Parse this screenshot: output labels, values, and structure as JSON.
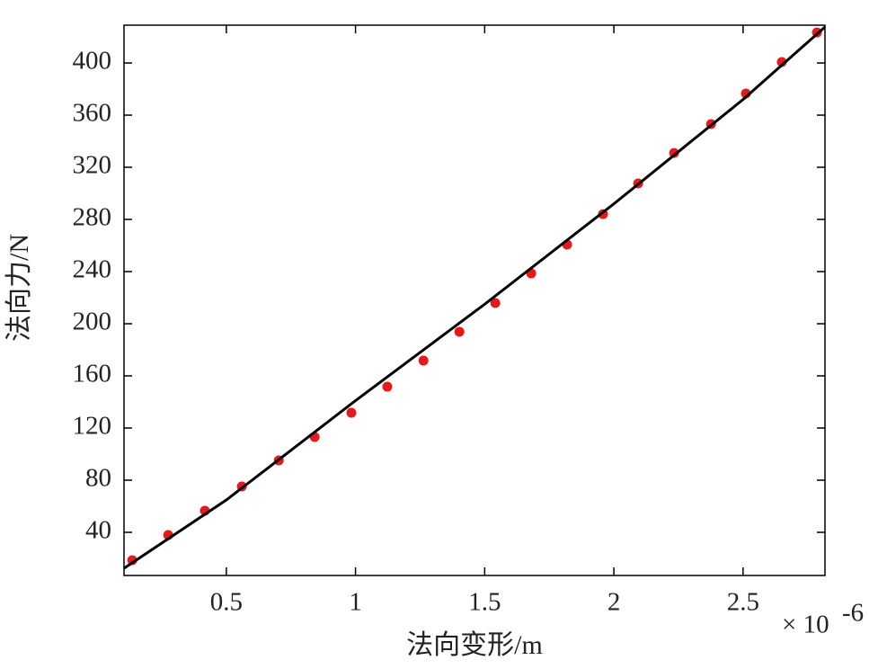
{
  "chart_data": {
    "type": "line",
    "x_label": "法向变形/m",
    "y_label": "法向力/N",
    "x_multiplier": "× 10",
    "x_multiplier_exp": "-6",
    "xlim": [
      0.104,
      2.817
    ],
    "ylim": [
      6.9,
      429
    ],
    "xticks": [
      0.5,
      1,
      1.5,
      2,
      2.5
    ],
    "yticks": [
      40,
      80,
      120,
      160,
      200,
      240,
      280,
      320,
      360,
      400
    ],
    "series": [
      {
        "style": "points",
        "color": "#e41a1c",
        "x": [
          0.136,
          0.275,
          0.417,
          0.56,
          0.703,
          0.842,
          0.984,
          1.123,
          1.263,
          1.402,
          1.541,
          1.68,
          1.819,
          1.958,
          2.094,
          2.233,
          2.376,
          2.511,
          2.65,
          2.786
        ],
        "values": [
          18.6,
          37.9,
          56.6,
          75.2,
          95.2,
          113.1,
          131.7,
          151.7,
          171.7,
          193.8,
          215.9,
          238.6,
          260.7,
          284.1,
          307.6,
          331.0,
          353.1,
          376.6,
          400.7,
          423.4
        ]
      },
      {
        "style": "line",
        "color": "#000000",
        "x": [
          0.104,
          0.5,
          1,
          1.5,
          2,
          2.5,
          2.817
        ],
        "values": [
          12.4,
          64.8,
          141,
          215,
          292,
          372,
          427.6
        ]
      }
    ]
  }
}
